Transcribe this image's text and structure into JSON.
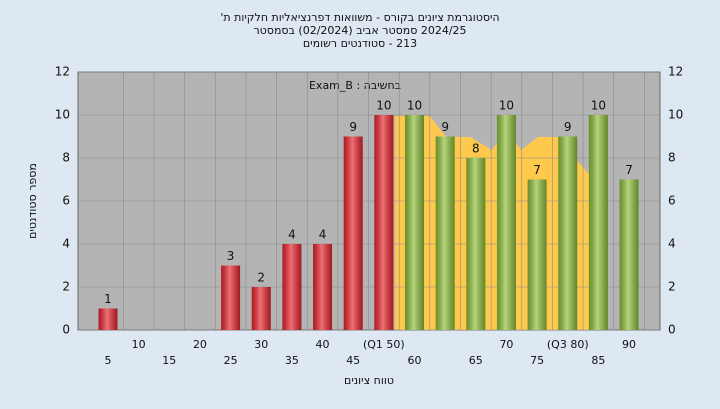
{
  "chart_data": {
    "type": "bar",
    "title_lines": [
      "היסטוגרמת ציונים בקורס - משוואות דפרנציאליות חלקיות ת'",
      "2024/25 סמסטר אביב  (02/2024)  בסמסטר",
      "213 - סטודנטים רשומים"
    ],
    "annotation": "בחשיבה : Exam_B",
    "xlabel": "טווח ציונים",
    "ylabel": "מספר סטודנטים",
    "categories": [
      "5",
      "10",
      "15",
      "20",
      "25",
      "30",
      "35",
      "40",
      "45",
      "(Q1 50)",
      "60",
      null,
      "65",
      "70",
      "75",
      "(Q3 80)",
      "85",
      "90"
    ],
    "values": [
      1,
      0,
      0,
      0,
      3,
      2,
      4,
      4,
      9,
      10,
      10,
      9,
      8,
      10,
      7,
      9,
      10,
      7
    ],
    "colors": [
      "#e8242c",
      "#e8242c",
      "#e8242c",
      "#e8242c",
      "#e8242c",
      "#e8242c",
      "#e8242c",
      "#e8242c",
      "#e8242c",
      "#e8242c",
      "#8fbf3a",
      "#8fbf3a",
      "#8fbf3a",
      "#8fbf3a",
      "#8fbf3a",
      "#8fbf3a",
      "#8fbf3a",
      "#8fbf3a"
    ],
    "ylim": [
      0,
      12
    ],
    "yticks": [
      0,
      2,
      4,
      6,
      8,
      10,
      12
    ],
    "grid": true
  }
}
